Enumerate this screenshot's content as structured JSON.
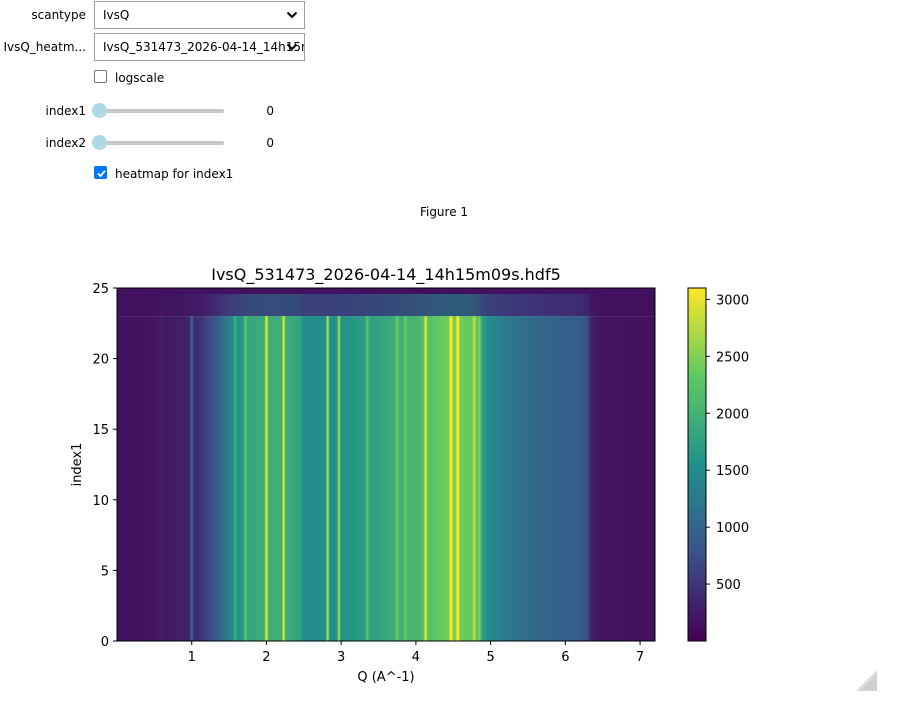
{
  "controls": {
    "scantype": {
      "label": "scantype",
      "value": "IvsQ"
    },
    "file": {
      "label": "IvsQ_heatm...",
      "value": "IvsQ_531473_2026-04-14_14h15m09s.hdf5"
    },
    "logscale": {
      "label": "logscale",
      "checked": false
    },
    "index1": {
      "label": "index1",
      "value": "0"
    },
    "index2": {
      "label": "index2",
      "value": "0"
    },
    "heatmap": {
      "label": "heatmap for index1",
      "checked": true
    }
  },
  "figure": {
    "label": "Figure 1"
  },
  "chart_data": {
    "type": "heatmap",
    "title": "IvsQ_531473_2026-04-14_14h15m09s.hdf5",
    "xlabel": "Q (A^-1)",
    "ylabel": "index1",
    "xlim": [
      0,
      7.2
    ],
    "ylim": [
      0,
      25
    ],
    "xticks": [
      1,
      2,
      3,
      4,
      5,
      6,
      7
    ],
    "yticks": [
      0,
      5,
      10,
      15,
      20,
      25
    ],
    "colormap": "viridis",
    "colorbar": {
      "min": 0,
      "max": 3100,
      "ticks": [
        500,
        1000,
        1500,
        2000,
        2500,
        3000
      ]
    },
    "rows_with_data": [
      0,
      23
    ],
    "background_intensity": 150,
    "intensity_profile": [
      [
        0.0,
        150
      ],
      [
        0.4,
        160
      ],
      [
        0.55,
        200
      ],
      [
        0.6,
        330
      ],
      [
        0.65,
        220
      ],
      [
        0.9,
        300
      ],
      [
        1.1,
        450
      ],
      [
        1.3,
        800
      ],
      [
        1.45,
        1200
      ],
      [
        1.6,
        1500
      ],
      [
        1.75,
        1800
      ],
      [
        1.9,
        1900
      ],
      [
        2.1,
        1950
      ],
      [
        2.3,
        1900
      ],
      [
        2.45,
        1800
      ],
      [
        2.5,
        1500
      ],
      [
        2.8,
        1500
      ],
      [
        3.0,
        1550
      ],
      [
        3.2,
        1650
      ],
      [
        3.4,
        1750
      ],
      [
        3.6,
        1850
      ],
      [
        3.8,
        1950
      ],
      [
        4.0,
        2050
      ],
      [
        4.2,
        2250
      ],
      [
        4.4,
        2400
      ],
      [
        4.6,
        2400
      ],
      [
        4.8,
        2300
      ],
      [
        4.9,
        1700
      ],
      [
        5.0,
        1450
      ],
      [
        5.3,
        1200
      ],
      [
        5.6,
        1050
      ],
      [
        5.9,
        950
      ],
      [
        6.2,
        900
      ],
      [
        6.3,
        700
      ],
      [
        6.35,
        300
      ],
      [
        6.5,
        180
      ],
      [
        7.2,
        150
      ]
    ],
    "peaks": [
      {
        "q": 1.0,
        "height": 700,
        "width": 0.012
      },
      {
        "q": 1.58,
        "height": 500,
        "width": 0.015
      },
      {
        "q": 1.72,
        "height": 500,
        "width": 0.015
      },
      {
        "q": 2.0,
        "height": 1150,
        "width": 0.013
      },
      {
        "q": 2.23,
        "height": 1100,
        "width": 0.013
      },
      {
        "q": 2.82,
        "height": 1300,
        "width": 0.013
      },
      {
        "q": 2.97,
        "height": 1150,
        "width": 0.013
      },
      {
        "q": 3.35,
        "height": 500,
        "width": 0.015
      },
      {
        "q": 3.75,
        "height": 450,
        "width": 0.015
      },
      {
        "q": 3.86,
        "height": 400,
        "width": 0.015
      },
      {
        "q": 4.13,
        "height": 800,
        "width": 0.015
      },
      {
        "q": 4.47,
        "height": 950,
        "width": 0.014
      },
      {
        "q": 4.56,
        "height": 900,
        "width": 0.014
      },
      {
        "q": 4.78,
        "height": 500,
        "width": 0.015
      },
      {
        "q": 4.85,
        "height": 450,
        "width": 0.015
      }
    ]
  }
}
